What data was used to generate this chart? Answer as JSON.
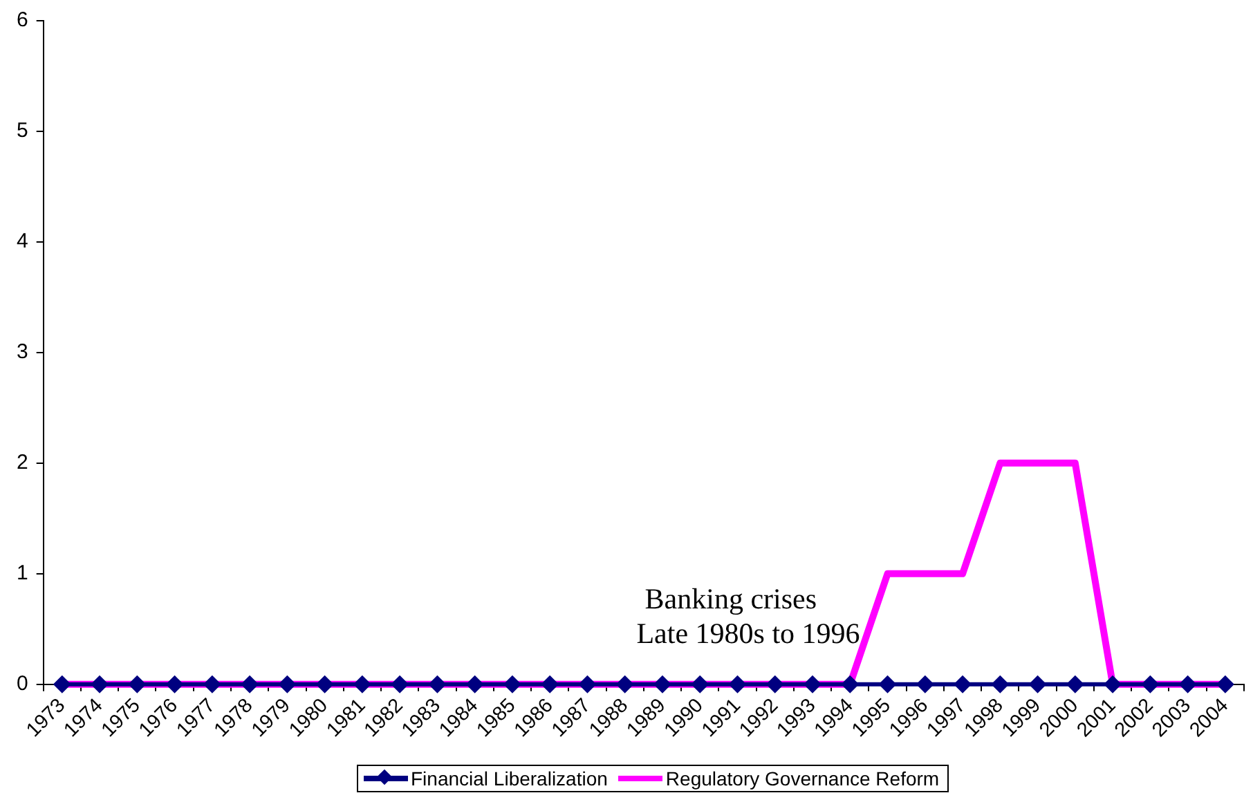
{
  "chart_data": {
    "type": "line",
    "categories": [
      "1973",
      "1974",
      "1975",
      "1976",
      "1977",
      "1978",
      "1979",
      "1980",
      "1981",
      "1982",
      "1983",
      "1984",
      "1985",
      "1986",
      "1987",
      "1988",
      "1989",
      "1990",
      "1991",
      "1992",
      "1993",
      "1994",
      "1995",
      "1996",
      "1997",
      "1998",
      "1999",
      "2000",
      "2001",
      "2002",
      "2003",
      "2004"
    ],
    "series": [
      {
        "name": "Financial Liberalization",
        "color": "#000080",
        "marker": "diamond",
        "values": [
          0,
          0,
          0,
          0,
          0,
          0,
          0,
          0,
          0,
          0,
          0,
          0,
          0,
          0,
          0,
          0,
          0,
          0,
          0,
          0,
          0,
          0,
          0,
          0,
          0,
          0,
          0,
          0,
          0,
          0,
          0,
          0
        ]
      },
      {
        "name": "Regulatory Governance Reform",
        "color": "#ff00ff",
        "marker": "none",
        "values": [
          0,
          0,
          0,
          0,
          0,
          0,
          0,
          0,
          0,
          0,
          0,
          0,
          0,
          0,
          0,
          0,
          0,
          0,
          0,
          0,
          0,
          0,
          1,
          1,
          1,
          2,
          2,
          2,
          0,
          0,
          0,
          0
        ]
      }
    ],
    "ylim": [
      0,
      6
    ],
    "yticks": [
      0,
      1,
      2,
      3,
      4,
      5,
      6
    ],
    "legend": "bottom",
    "annotations": [
      "Banking crises",
      "Late 1980s to 1996"
    ]
  }
}
